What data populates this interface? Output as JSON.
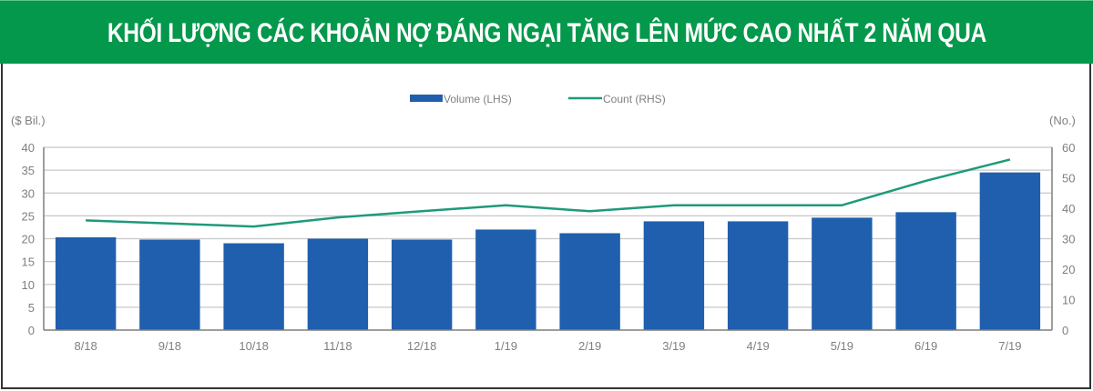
{
  "banner": {
    "title": "KHỐI LƯỢNG CÁC KHOẢN NỢ ĐÁNG NGẠI TĂNG LÊN MỨC CAO NHẤT 2 NĂM QUA",
    "background": "#03984b"
  },
  "legend": {
    "items": [
      {
        "label": "Volume (LHS)",
        "type": "bar",
        "color": "#1f5fae"
      },
      {
        "label": "Count (RHS)",
        "type": "line",
        "color": "#1e9a7a"
      }
    ]
  },
  "axes": {
    "left_unit": "($ Bil.)",
    "right_unit": "(No.)",
    "left_ticks": [
      "0",
      "5",
      "10",
      "15",
      "20",
      "25",
      "30",
      "35",
      "40"
    ],
    "right_ticks": [
      "0",
      "10",
      "20",
      "30",
      "40",
      "50",
      "60"
    ]
  },
  "chart_data": {
    "type": "bar",
    "title": "KHỐI LƯỢNG CÁC KHOẢN NỢ ĐÁNG NGẠI TĂNG LÊN MỨC CAO NHẤT 2 NĂM QUA",
    "categories": [
      "8/18",
      "9/18",
      "10/18",
      "11/18",
      "12/18",
      "1/19",
      "2/19",
      "3/19",
      "4/19",
      "5/19",
      "6/19",
      "7/19"
    ],
    "series": [
      {
        "name": "Volume (LHS)",
        "type": "bar",
        "axis": "left",
        "color": "#1f5fae",
        "values": [
          20.3,
          19.8,
          19.0,
          20.0,
          19.8,
          22.0,
          21.2,
          23.8,
          23.8,
          24.6,
          25.8,
          34.5
        ]
      },
      {
        "name": "Count (RHS)",
        "type": "line",
        "axis": "right",
        "color": "#1e9a7a",
        "values": [
          36,
          35,
          34,
          37,
          39,
          41,
          39,
          41,
          41,
          41,
          49,
          56
        ]
      }
    ],
    "xlabel": "",
    "ylabel": "($ Bil.)",
    "ylabel_right": "(No.)",
    "ylim": [
      0,
      40
    ],
    "ylim_right": [
      0,
      60
    ],
    "yticks": [
      0,
      5,
      10,
      15,
      20,
      25,
      30,
      35,
      40
    ],
    "yticks_right": [
      0,
      10,
      20,
      30,
      40,
      50,
      60
    ],
    "grid": true,
    "legend_position": "top"
  }
}
